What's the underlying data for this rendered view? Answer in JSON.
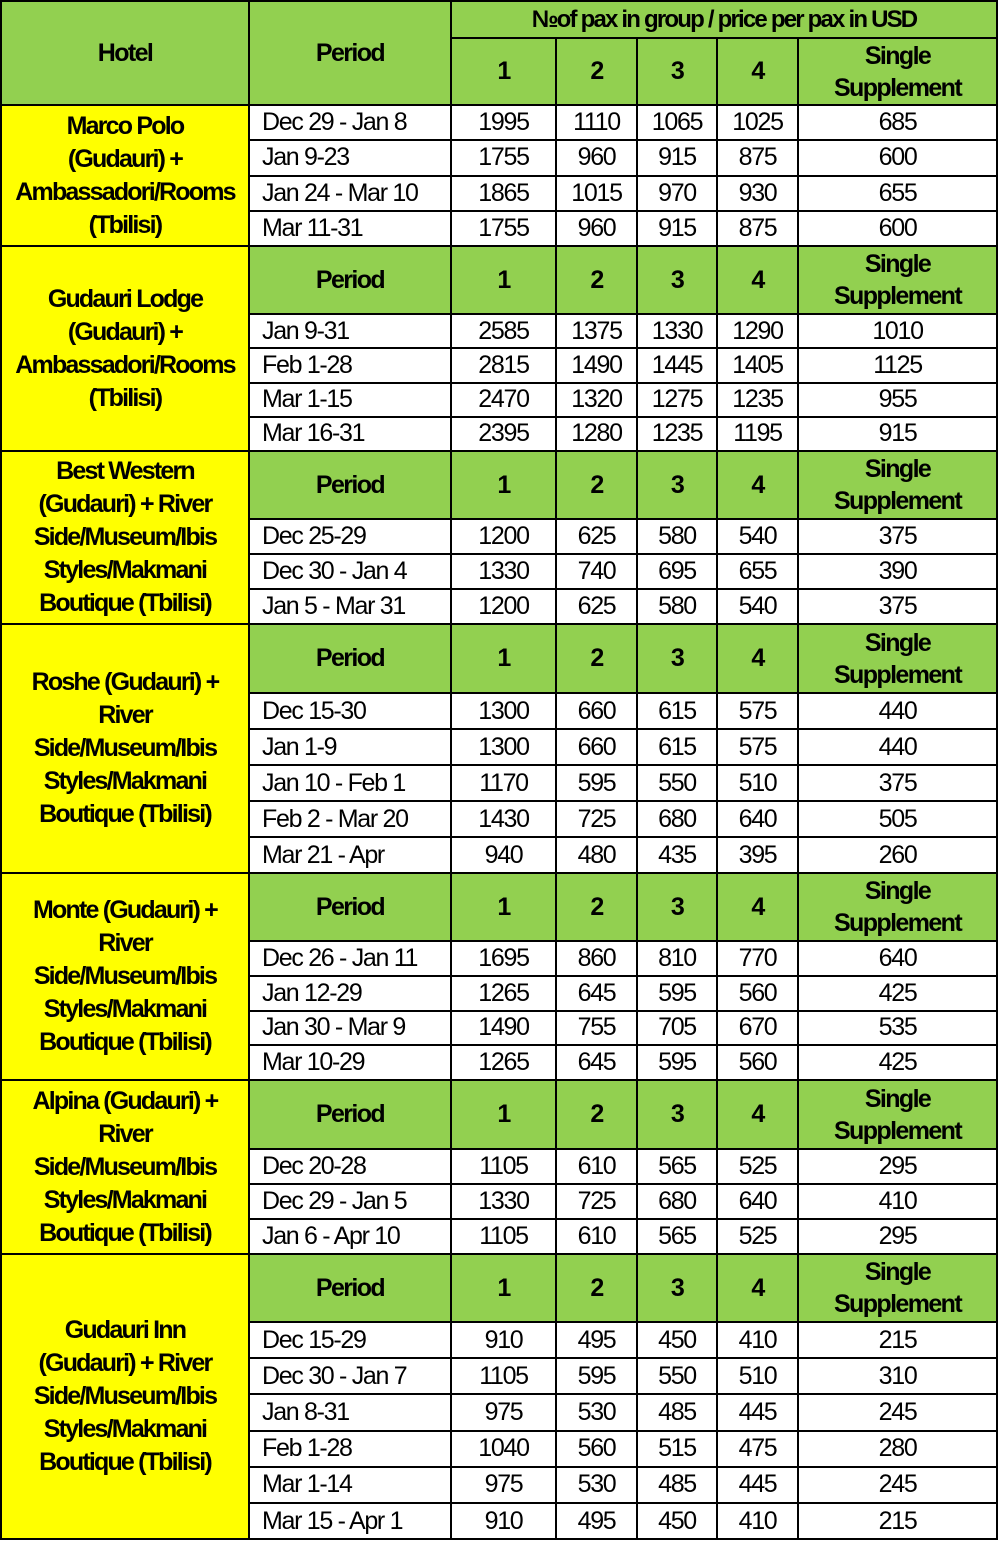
{
  "header": {
    "hotel": "Hotel",
    "period": "Period",
    "group_label": "№of pax in group /  price per pax in USD",
    "cols": [
      "1",
      "2",
      "3",
      "4",
      "Single\nSupplement"
    ]
  },
  "colors": {
    "header_bg": "#92d050",
    "hotel_bg": "#ffff00",
    "border": "#000000"
  },
  "blocks": [
    {
      "hotel": "Marco Polo\n(Gudauri) +\nAmbassadori/Rooms\n(Tbilisi)",
      "subheader": false,
      "rows": [
        {
          "period": "Dec 29 - Jan 8",
          "values": [
            "1995",
            "1110",
            "1065",
            "1025",
            "685"
          ]
        },
        {
          "period": "Jan 9-23",
          "values": [
            "1755",
            "960",
            "915",
            "875",
            "600"
          ]
        },
        {
          "period": "Jan 24 - Mar 10",
          "values": [
            "1865",
            "1015",
            "970",
            "930",
            "655"
          ]
        },
        {
          "period": "Mar 11-31",
          "values": [
            "1755",
            "960",
            "915",
            "875",
            "600"
          ]
        }
      ]
    },
    {
      "hotel": "Gudauri Lodge\n(Gudauri) +\nAmbassadori/Rooms\n(Tbilisi)",
      "subheader": true,
      "rows": [
        {
          "period": "Jan 9-31",
          "values": [
            "2585",
            "1375",
            "1330",
            "1290",
            "1010"
          ]
        },
        {
          "period": "Feb 1-28",
          "values": [
            "2815",
            "1490",
            "1445",
            "1405",
            "1125"
          ]
        },
        {
          "period": "Mar 1-15",
          "values": [
            "2470",
            "1320",
            "1275",
            "1235",
            "955"
          ]
        },
        {
          "period": "Mar 16-31",
          "values": [
            "2395",
            "1280",
            "1235",
            "1195",
            "915"
          ]
        }
      ]
    },
    {
      "hotel": "Best Western\n(Gudauri) + River\nSide/Museum/Ibis\nStyles/Makmani\nBoutique (Tbilisi)",
      "subheader": true,
      "rows": [
        {
          "period": "Dec 25-29",
          "values": [
            "1200",
            "625",
            "580",
            "540",
            "375"
          ]
        },
        {
          "period": "Dec 30 - Jan 4",
          "values": [
            "1330",
            "740",
            "695",
            "655",
            "390"
          ]
        },
        {
          "period": "Jan 5 - Mar 31",
          "values": [
            "1200",
            "625",
            "580",
            "540",
            "375"
          ]
        }
      ]
    },
    {
      "hotel": "Roshe (Gudauri) +\nRiver\nSide/Museum/Ibis\nStyles/Makmani\nBoutique (Tbilisi)",
      "subheader": true,
      "rows": [
        {
          "period": "Dec 15-30",
          "values": [
            "1300",
            "660",
            "615",
            "575",
            "440"
          ]
        },
        {
          "period": "Jan 1-9",
          "values": [
            "1300",
            "660",
            "615",
            "575",
            "440"
          ]
        },
        {
          "period": "Jan 10 - Feb 1",
          "values": [
            "1170",
            "595",
            "550",
            "510",
            "375"
          ]
        },
        {
          "period": "Feb 2 - Mar 20",
          "values": [
            "1430",
            "725",
            "680",
            "640",
            "505"
          ]
        },
        {
          "period": "Mar 21 - Apr",
          "values": [
            "940",
            "480",
            "435",
            "395",
            "260"
          ]
        }
      ]
    },
    {
      "hotel": "Monte (Gudauri) +\nRiver\nSide/Museum/Ibis\nStyles/Makmani\nBoutique (Tbilisi)",
      "subheader": true,
      "rows": [
        {
          "period": "Dec 26 - Jan 11",
          "values": [
            "1695",
            "860",
            "810",
            "770",
            "640"
          ]
        },
        {
          "period": "Jan 12-29",
          "values": [
            "1265",
            "645",
            "595",
            "560",
            "425"
          ]
        },
        {
          "period": "Jan 30 - Mar 9",
          "values": [
            "1490",
            "755",
            "705",
            "670",
            "535"
          ]
        },
        {
          "period": "Mar 10-29",
          "values": [
            "1265",
            "645",
            "595",
            "560",
            "425"
          ]
        }
      ]
    },
    {
      "hotel": "Alpina (Gudauri) +\nRiver\nSide/Museum/Ibis\nStyles/Makmani\nBoutique (Tbilisi)",
      "subheader": true,
      "rows": [
        {
          "period": "Dec 20-28",
          "values": [
            "1105",
            "610",
            "565",
            "525",
            "295"
          ]
        },
        {
          "period": "Dec 29 - Jan 5",
          "values": [
            "1330",
            "725",
            "680",
            "640",
            "410"
          ]
        },
        {
          "period": "Jan 6 - Apr 10",
          "values": [
            "1105",
            "610",
            "565",
            "525",
            "295"
          ]
        }
      ]
    },
    {
      "hotel": "Gudauri Inn\n(Gudauri) + River\nSide/Museum/Ibis\nStyles/Makmani\nBoutique (Tbilisi)",
      "subheader": true,
      "rows": [
        {
          "period": "Dec 15-29",
          "values": [
            "910",
            "495",
            "450",
            "410",
            "215"
          ]
        },
        {
          "period": "Dec 30 - Jan 7",
          "values": [
            "1105",
            "595",
            "550",
            "510",
            "310"
          ]
        },
        {
          "period": "Jan 8-31",
          "values": [
            "975",
            "530",
            "485",
            "445",
            "245"
          ]
        },
        {
          "period": "Feb 1-28",
          "values": [
            "1040",
            "560",
            "515",
            "475",
            "280"
          ]
        },
        {
          "period": "Mar 1-14",
          "values": [
            "975",
            "530",
            "485",
            "445",
            "245"
          ]
        },
        {
          "period": "Mar 15 - Apr 1",
          "values": [
            "910",
            "495",
            "450",
            "410",
            "215"
          ]
        }
      ]
    }
  ]
}
